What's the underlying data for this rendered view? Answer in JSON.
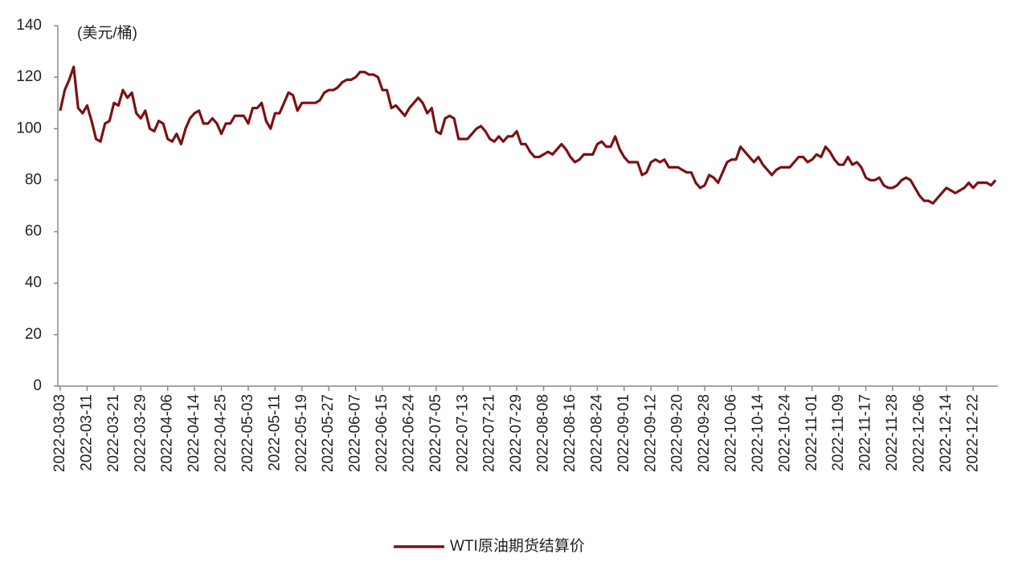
{
  "chart_data": {
    "type": "line",
    "annotation": "(美元/桶)",
    "categories": [
      "2022-03-03",
      null,
      null,
      null,
      null,
      null,
      "2022-03-11",
      null,
      null,
      null,
      null,
      null,
      "2022-03-21",
      null,
      null,
      null,
      null,
      null,
      "2022-03-29",
      null,
      null,
      null,
      null,
      null,
      "2022-04-06",
      null,
      null,
      null,
      null,
      null,
      "2022-04-14",
      null,
      null,
      null,
      null,
      null,
      "2022-04-25",
      null,
      null,
      null,
      null,
      null,
      "2022-05-03",
      null,
      null,
      null,
      null,
      null,
      "2022-05-11",
      null,
      null,
      null,
      null,
      null,
      "2022-05-19",
      null,
      null,
      null,
      null,
      null,
      "2022-05-27",
      null,
      null,
      null,
      null,
      null,
      "2022-06-07",
      null,
      null,
      null,
      null,
      null,
      "2022-06-15",
      null,
      null,
      null,
      null,
      null,
      "2022-06-24",
      null,
      null,
      null,
      null,
      null,
      "2022-07-05",
      null,
      null,
      null,
      null,
      null,
      "2022-07-13",
      null,
      null,
      null,
      null,
      null,
      "2022-07-21",
      null,
      null,
      null,
      null,
      null,
      "2022-07-29",
      null,
      null,
      null,
      null,
      null,
      "2022-08-08",
      null,
      null,
      null,
      null,
      null,
      "2022-08-16",
      null,
      null,
      null,
      null,
      null,
      "2022-08-24",
      null,
      null,
      null,
      null,
      null,
      "2022-09-01",
      null,
      null,
      null,
      null,
      null,
      "2022-09-12",
      null,
      null,
      null,
      null,
      null,
      "2022-09-20",
      null,
      null,
      null,
      null,
      null,
      "2022-09-28",
      null,
      null,
      null,
      null,
      null,
      "2022-10-06",
      null,
      null,
      null,
      null,
      null,
      "2022-10-14",
      null,
      null,
      null,
      null,
      null,
      "2022-10-24",
      null,
      null,
      null,
      null,
      null,
      "2022-11-01",
      null,
      null,
      null,
      null,
      null,
      "2022-11-09",
      null,
      null,
      null,
      null,
      null,
      "2022-11-17",
      null,
      null,
      null,
      null,
      null,
      "2022-11-28",
      null,
      null,
      null,
      null,
      null,
      "2022-12-06",
      null,
      null,
      null,
      null,
      null,
      "2022-12-14",
      null,
      null,
      null,
      null,
      null,
      "2022-12-22",
      null,
      null,
      null,
      null,
      null
    ],
    "series": [
      {
        "name": "WTI原油期货结算价",
        "color": "#7b1113",
        "values": [
          107,
          115,
          119,
          124,
          108,
          106,
          109,
          103,
          96,
          95,
          102,
          103,
          110,
          109,
          115,
          112,
          114,
          106,
          104,
          107,
          100,
          99,
          103,
          102,
          96,
          95,
          98,
          94,
          100,
          104,
          106,
          107,
          102,
          102,
          104,
          102,
          98,
          102,
          102,
          105,
          105,
          105,
          102,
          108,
          108,
          110,
          103,
          100,
          106,
          106,
          110,
          114,
          113,
          107,
          110,
          110,
          110,
          110,
          111,
          114,
          115,
          115,
          116,
          118,
          119,
          119,
          120,
          122,
          122,
          121,
          121,
          120,
          115,
          115,
          108,
          109,
          107,
          105,
          108,
          110,
          112,
          110,
          106,
          108,
          99,
          98,
          104,
          105,
          104,
          96,
          96,
          96,
          98,
          100,
          101,
          99,
          96,
          95,
          97,
          95,
          97,
          97,
          99,
          94,
          94,
          91,
          89,
          89,
          90,
          91,
          90,
          92,
          94,
          92,
          89,
          87,
          88,
          90,
          90,
          90,
          94,
          95,
          93,
          93,
          97,
          92,
          89,
          87,
          87,
          87,
          82,
          83,
          87,
          88,
          87,
          88,
          85,
          85,
          85,
          84,
          83,
          83,
          79,
          77,
          78,
          82,
          81,
          79,
          83,
          87,
          88,
          88,
          93,
          91,
          89,
          87,
          89,
          86,
          84,
          82,
          84,
          85,
          85,
          85,
          87,
          89,
          89,
          87,
          88,
          90,
          89,
          93,
          91,
          88,
          86,
          86,
          89,
          86,
          87,
          85,
          81,
          80,
          80,
          81,
          78,
          77,
          77,
          78,
          80,
          81,
          80,
          77,
          74,
          72,
          72,
          71,
          73,
          75,
          77,
          76,
          75,
          76,
          77,
          79,
          77,
          79,
          79,
          79,
          78,
          80
        ]
      }
    ],
    "ylim": [
      0,
      140
    ],
    "yticks": [
      0,
      20,
      40,
      60,
      80,
      100,
      120,
      140
    ],
    "grid": false
  }
}
